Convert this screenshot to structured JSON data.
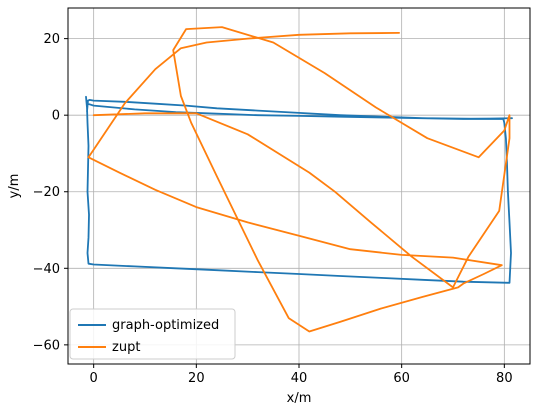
{
  "chart_data": {
    "type": "line",
    "title": "",
    "xlabel": "x/m",
    "ylabel": "y/m",
    "xlim": [
      -5,
      85
    ],
    "ylim": [
      -65,
      28
    ],
    "xticks": [
      0,
      20,
      40,
      60,
      80
    ],
    "yticks": [
      20,
      0,
      -20,
      -40,
      -60
    ],
    "grid": true,
    "legend": "lower-left",
    "series": [
      {
        "name": "graph-optimized",
        "color": "#1f77b4",
        "x": [
          -1.5,
          -1.3,
          -1.2,
          -1.0,
          -1.1,
          -1.2,
          -0.9,
          -1.0,
          -1.2,
          -1.0,
          0,
          8,
          16,
          24,
          32,
          40,
          48,
          56,
          64,
          72,
          81,
          81.3,
          81.0,
          80.7,
          80.5,
          80.3,
          80.0,
          79.8,
          72,
          64,
          56,
          48,
          40,
          32,
          24,
          16,
          8,
          0,
          -1.2,
          -1.3,
          -1.1,
          -0.8,
          0,
          6,
          12,
          18,
          24,
          32,
          40,
          48,
          56,
          64,
          72,
          81.5
        ],
        "y": [
          4.8,
          2.0,
          -2.0,
          -8.0,
          -14.0,
          -20.0,
          -26.0,
          -32.0,
          -36.0,
          -38.8,
          -39.0,
          -39.5,
          -40.0,
          -40.5,
          -41.0,
          -41.5,
          -42.0,
          -42.5,
          -43.0,
          -43.5,
          -43.8,
          -36.0,
          -28.0,
          -20.0,
          -12.0,
          -6.0,
          -2.0,
          -1.0,
          -0.9,
          -0.8,
          -0.6,
          -0.4,
          -0.2,
          0.0,
          0.4,
          0.8,
          1.5,
          2.5,
          3.0,
          1.0,
          3.8,
          4.0,
          3.8,
          3.5,
          3.0,
          2.5,
          1.8,
          1.2,
          0.6,
          0.0,
          -0.4,
          -0.8,
          -1.0,
          -0.8
        ]
      },
      {
        "name": "zupt",
        "color": "#ff7f0e",
        "x": [
          59.5,
          50,
          40,
          30,
          22,
          17,
          12,
          6,
          0,
          -1,
          5,
          12,
          20,
          30,
          40,
          50,
          60,
          70,
          79.5,
          76,
          72,
          71,
          64,
          56,
          48,
          42,
          38,
          32,
          24,
          19,
          17,
          15.5,
          18,
          25,
          35,
          45,
          55,
          65,
          75,
          80,
          81,
          81,
          79,
          73,
          70,
          62,
          54,
          47,
          42,
          30,
          20,
          10,
          0
        ],
        "y": [
          21.5,
          21.4,
          21.0,
          20.0,
          19.0,
          17.5,
          12.0,
          3.0,
          -9.0,
          -11.0,
          -15.0,
          -19.5,
          -24.0,
          -28.0,
          -31.5,
          -35.0,
          -36.5,
          -37.2,
          -39.2,
          -41.5,
          -44.0,
          -45.0,
          -47.5,
          -50.5,
          -54.0,
          -56.5,
          -53.0,
          -38.0,
          -16.0,
          -2.0,
          5.0,
          17.0,
          22.5,
          23.0,
          19.0,
          11.0,
          2.0,
          -6.0,
          -11.0,
          -4.0,
          0.0,
          -6.0,
          -25.0,
          -37.0,
          -45.0,
          -37.0,
          -28.0,
          -20.0,
          -15.0,
          -5.0,
          0.5,
          0.5,
          0.0
        ]
      }
    ]
  }
}
